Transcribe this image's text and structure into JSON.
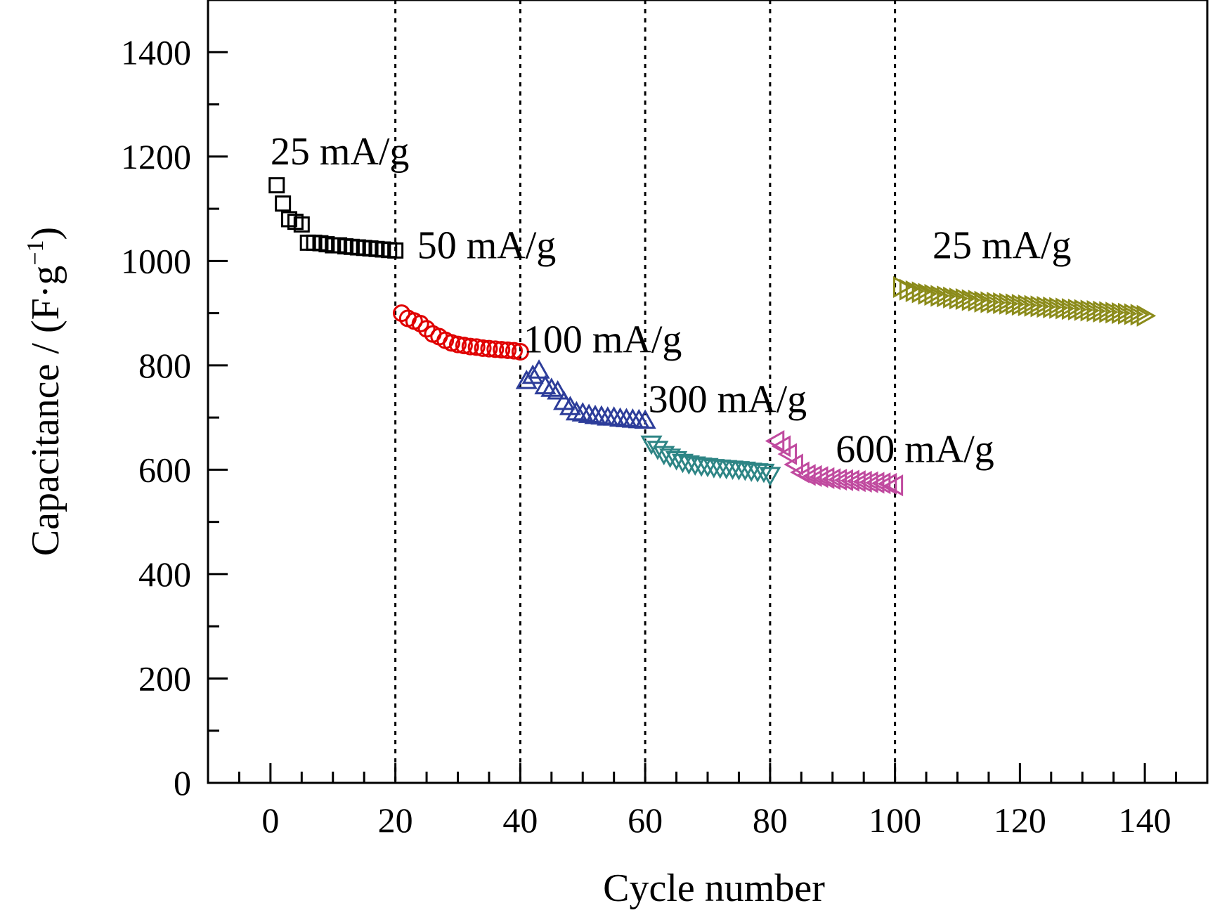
{
  "chart_data": {
    "type": "scatter",
    "xlabel": "Cycle number",
    "ylabel": "Capacitance / (F·g",
    "ylabel_sup": "−1",
    "ylabel_close": ")",
    "xlim": [
      -10,
      150
    ],
    "ylim": [
      0,
      1500
    ],
    "xticks": [
      0,
      20,
      40,
      60,
      80,
      100,
      120,
      140
    ],
    "yticks": [
      0,
      200,
      400,
      600,
      800,
      1000,
      1200,
      1400
    ],
    "x_minor_step": 5,
    "y_minor_step": 100,
    "vlines": [
      20,
      40,
      60,
      80,
      100
    ],
    "grid": false,
    "series": [
      {
        "color": "#000000",
        "marker": "square",
        "x": [
          1,
          2,
          3,
          4,
          5,
          6,
          7,
          8,
          9,
          10,
          11,
          12,
          13,
          14,
          15,
          16,
          17,
          18,
          19,
          20
        ],
        "y": [
          1145,
          1110,
          1080,
          1075,
          1070,
          1035,
          1035,
          1034,
          1032,
          1030,
          1030,
          1028,
          1027,
          1026,
          1025,
          1024,
          1023,
          1022,
          1021,
          1020
        ]
      },
      {
        "color": "#e00000",
        "marker": "circle",
        "x": [
          21,
          22,
          23,
          24,
          25,
          26,
          27,
          28,
          29,
          30,
          31,
          32,
          33,
          34,
          35,
          36,
          37,
          38,
          39,
          40
        ],
        "y": [
          900,
          890,
          885,
          880,
          870,
          860,
          855,
          848,
          843,
          840,
          838,
          836,
          835,
          833,
          832,
          831,
          830,
          829,
          828,
          826
        ]
      },
      {
        "color": "#2d3d9a",
        "marker": "triangle-up",
        "x": [
          41,
          42,
          43,
          44,
          45,
          46,
          47,
          48,
          49,
          50,
          51,
          52,
          53,
          54,
          55,
          56,
          57,
          58,
          59,
          60
        ],
        "y": [
          770,
          780,
          790,
          760,
          755,
          750,
          730,
          720,
          710,
          708,
          705,
          703,
          702,
          700,
          700,
          698,
          697,
          696,
          695,
          694
        ]
      },
      {
        "color": "#2e8585",
        "marker": "triangle-down",
        "x": [
          61,
          62,
          63,
          64,
          65,
          66,
          67,
          68,
          69,
          70,
          71,
          72,
          73,
          74,
          75,
          76,
          77,
          78,
          79,
          80
        ],
        "y": [
          650,
          640,
          630,
          625,
          620,
          615,
          612,
          610,
          608,
          607,
          605,
          604,
          603,
          602,
          601,
          600,
          598,
          597,
          596,
          590
        ]
      },
      {
        "color": "#c04a9f",
        "marker": "triangle-left",
        "x": [
          81,
          82,
          83,
          84,
          85,
          86,
          87,
          88,
          89,
          90,
          91,
          92,
          93,
          94,
          95,
          96,
          97,
          98,
          99,
          100
        ],
        "y": [
          655,
          645,
          630,
          610,
          595,
          590,
          588,
          586,
          584,
          582,
          581,
          580,
          579,
          578,
          577,
          576,
          575,
          574,
          573,
          570
        ]
      },
      {
        "color": "#8b8b1a",
        "marker": "triangle-right",
        "x": [
          101,
          102,
          103,
          104,
          105,
          106,
          107,
          108,
          109,
          110,
          111,
          112,
          113,
          114,
          115,
          116,
          117,
          118,
          119,
          120,
          121,
          122,
          123,
          124,
          125,
          126,
          127,
          128,
          129,
          130,
          131,
          132,
          133,
          134,
          135,
          136,
          137,
          138,
          139,
          140
        ],
        "y": [
          950,
          945,
          942,
          940,
          937,
          935,
          933,
          932,
          930,
          928,
          927,
          925,
          924,
          922,
          921,
          920,
          919,
          918,
          917,
          916,
          915,
          914,
          913,
          912,
          911,
          910,
          909,
          908,
          907,
          906,
          905,
          904,
          903,
          902,
          901,
          900,
          899,
          898,
          897,
          895
        ]
      }
    ],
    "annotations": [
      {
        "text": "25 mA/g",
        "x": 0,
        "y": 1185
      },
      {
        "text": "50 mA/g",
        "x": 23.5,
        "y": 1005
      },
      {
        "text": "100 mA/g",
        "x": 40.5,
        "y": 825
      },
      {
        "text": "300  mA/g",
        "x": 60.5,
        "y": 710
      },
      {
        "text": "600 mA/g",
        "x": 90.5,
        "y": 615
      },
      {
        "text": "25 mA/g",
        "x": 106,
        "y": 1005
      }
    ]
  }
}
